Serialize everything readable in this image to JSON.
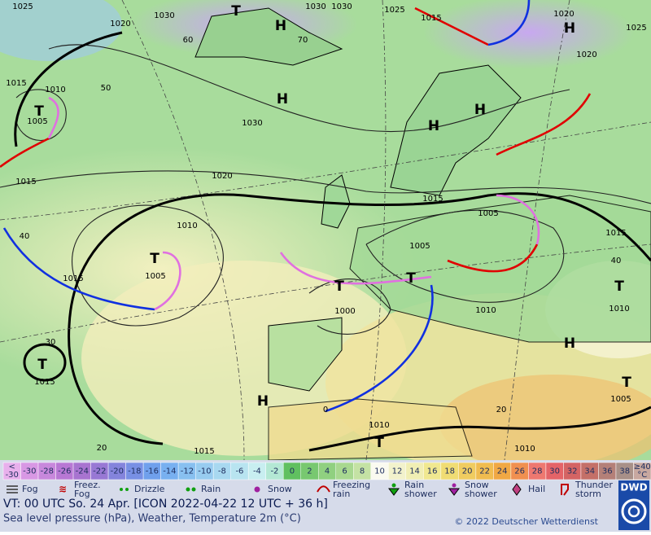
{
  "map": {
    "isobar_labels": [
      "1025",
      "1030",
      "1030",
      "1030",
      "1025",
      "1020",
      "1025",
      "1015",
      "1020",
      "1015",
      "1010",
      "1005",
      "1030",
      "1020",
      "1015",
      "1015",
      "1010",
      "1005",
      "1005",
      "1015",
      "1015",
      "1005",
      "1000",
      "1010",
      "1010",
      "1015",
      "1005",
      "1010",
      "1015",
      "1010",
      "1020"
    ],
    "temperature_labels": [
      "60",
      "70",
      "50",
      "40",
      "40",
      "30",
      "20",
      "20",
      "0"
    ],
    "pressure_systems": [
      "H",
      "H",
      "H",
      "H",
      "H",
      "H",
      "H",
      "T",
      "T",
      "T",
      "T",
      "T",
      "T",
      "T",
      "T",
      "T"
    ]
  },
  "scale": {
    "under": [
      "<",
      "-30"
    ],
    "values": [
      "-30",
      "-28",
      "-26",
      "-24",
      "-22",
      "-20",
      "-18",
      "-16",
      "-14",
      "-12",
      "-10",
      "-8",
      "-6",
      "-4",
      "-2",
      "0",
      "2",
      "4",
      "6",
      "8",
      "10",
      "12",
      "14",
      "16",
      "18",
      "20",
      "22",
      "24",
      "26",
      "28",
      "30",
      "32",
      "34",
      "36",
      "38"
    ],
    "over": [
      "≥40",
      "°C"
    ],
    "under_color": "#e8b0ec",
    "colors": [
      "#d898e4",
      "#c888dc",
      "#b878d4",
      "#a874d0",
      "#9878d4",
      "#8484dc",
      "#7890e4",
      "#70a0ec",
      "#78b0f0",
      "#88c0f0",
      "#98ccf0",
      "#a8d8f0",
      "#b8e4f0",
      "#c8eef0",
      "#b4e8d4",
      "#60c060",
      "#78c870",
      "#90d080",
      "#a8d890",
      "#c4e2a4",
      "#fafaf0",
      "#f2f2cc",
      "#f0eeb4",
      "#f0e890",
      "#f0dc74",
      "#f0cc60",
      "#f0bc50",
      "#f0a844",
      "#f09050",
      "#ee7870",
      "#e46468",
      "#d46464",
      "#c47068",
      "#b48078",
      "#a89088"
    ],
    "over_color": "#c8a8a0"
  },
  "legend": [
    [
      "Fog"
    ],
    [
      "Freez.",
      "Fog"
    ],
    [
      "Drizzle"
    ],
    [
      "Rain"
    ],
    [
      "Snow"
    ],
    [
      "Freezing",
      "rain"
    ],
    [
      "Rain",
      "shower"
    ],
    [
      "Snow",
      "shower"
    ],
    [
      "Hail"
    ],
    [
      "Thunder",
      "storm"
    ]
  ],
  "footer": {
    "valid_time": "VT: 00 UTC So.  24 Apr. [ICON 2022-04-22  12 UTC + 36 h]",
    "description": "Sea level pressure (hPa), Weather, Temperature 2m (°C)",
    "copyright": "© 2022 Deutscher Wetterdienst",
    "logo": "DWD"
  }
}
